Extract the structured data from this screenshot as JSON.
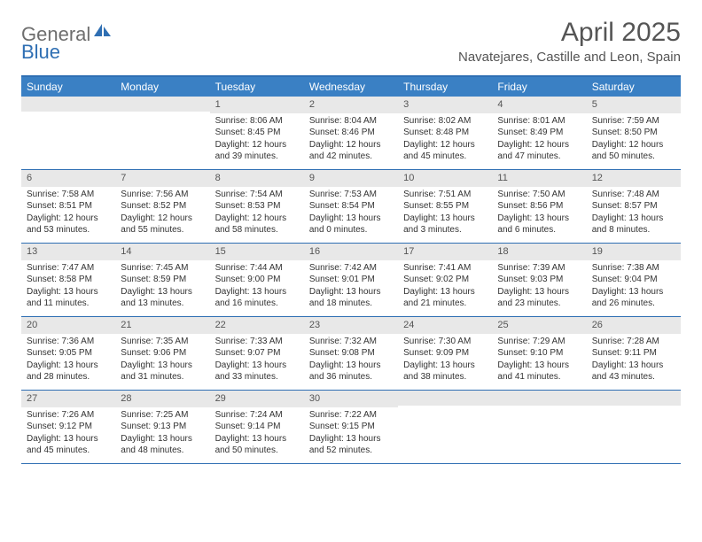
{
  "logo": {
    "text1": "General",
    "text2": "Blue"
  },
  "title": "April 2025",
  "location": "Navatejares, Castille and Leon, Spain",
  "colors": {
    "header_bar": "#3a80c4",
    "border": "#2f6fb3",
    "daynum_bg": "#e8e8e8",
    "text_gray": "#555555",
    "logo_gray": "#6e6e6e",
    "logo_blue": "#2f6fb3"
  },
  "weekdays": [
    "Sunday",
    "Monday",
    "Tuesday",
    "Wednesday",
    "Thursday",
    "Friday",
    "Saturday"
  ],
  "weeks": [
    [
      {
        "num": "",
        "sunrise": "",
        "sunset": "",
        "daylight": ""
      },
      {
        "num": "",
        "sunrise": "",
        "sunset": "",
        "daylight": ""
      },
      {
        "num": "1",
        "sunrise": "Sunrise: 8:06 AM",
        "sunset": "Sunset: 8:45 PM",
        "daylight": "Daylight: 12 hours and 39 minutes."
      },
      {
        "num": "2",
        "sunrise": "Sunrise: 8:04 AM",
        "sunset": "Sunset: 8:46 PM",
        "daylight": "Daylight: 12 hours and 42 minutes."
      },
      {
        "num": "3",
        "sunrise": "Sunrise: 8:02 AM",
        "sunset": "Sunset: 8:48 PM",
        "daylight": "Daylight: 12 hours and 45 minutes."
      },
      {
        "num": "4",
        "sunrise": "Sunrise: 8:01 AM",
        "sunset": "Sunset: 8:49 PM",
        "daylight": "Daylight: 12 hours and 47 minutes."
      },
      {
        "num": "5",
        "sunrise": "Sunrise: 7:59 AM",
        "sunset": "Sunset: 8:50 PM",
        "daylight": "Daylight: 12 hours and 50 minutes."
      }
    ],
    [
      {
        "num": "6",
        "sunrise": "Sunrise: 7:58 AM",
        "sunset": "Sunset: 8:51 PM",
        "daylight": "Daylight: 12 hours and 53 minutes."
      },
      {
        "num": "7",
        "sunrise": "Sunrise: 7:56 AM",
        "sunset": "Sunset: 8:52 PM",
        "daylight": "Daylight: 12 hours and 55 minutes."
      },
      {
        "num": "8",
        "sunrise": "Sunrise: 7:54 AM",
        "sunset": "Sunset: 8:53 PM",
        "daylight": "Daylight: 12 hours and 58 minutes."
      },
      {
        "num": "9",
        "sunrise": "Sunrise: 7:53 AM",
        "sunset": "Sunset: 8:54 PM",
        "daylight": "Daylight: 13 hours and 0 minutes."
      },
      {
        "num": "10",
        "sunrise": "Sunrise: 7:51 AM",
        "sunset": "Sunset: 8:55 PM",
        "daylight": "Daylight: 13 hours and 3 minutes."
      },
      {
        "num": "11",
        "sunrise": "Sunrise: 7:50 AM",
        "sunset": "Sunset: 8:56 PM",
        "daylight": "Daylight: 13 hours and 6 minutes."
      },
      {
        "num": "12",
        "sunrise": "Sunrise: 7:48 AM",
        "sunset": "Sunset: 8:57 PM",
        "daylight": "Daylight: 13 hours and 8 minutes."
      }
    ],
    [
      {
        "num": "13",
        "sunrise": "Sunrise: 7:47 AM",
        "sunset": "Sunset: 8:58 PM",
        "daylight": "Daylight: 13 hours and 11 minutes."
      },
      {
        "num": "14",
        "sunrise": "Sunrise: 7:45 AM",
        "sunset": "Sunset: 8:59 PM",
        "daylight": "Daylight: 13 hours and 13 minutes."
      },
      {
        "num": "15",
        "sunrise": "Sunrise: 7:44 AM",
        "sunset": "Sunset: 9:00 PM",
        "daylight": "Daylight: 13 hours and 16 minutes."
      },
      {
        "num": "16",
        "sunrise": "Sunrise: 7:42 AM",
        "sunset": "Sunset: 9:01 PM",
        "daylight": "Daylight: 13 hours and 18 minutes."
      },
      {
        "num": "17",
        "sunrise": "Sunrise: 7:41 AM",
        "sunset": "Sunset: 9:02 PM",
        "daylight": "Daylight: 13 hours and 21 minutes."
      },
      {
        "num": "18",
        "sunrise": "Sunrise: 7:39 AM",
        "sunset": "Sunset: 9:03 PM",
        "daylight": "Daylight: 13 hours and 23 minutes."
      },
      {
        "num": "19",
        "sunrise": "Sunrise: 7:38 AM",
        "sunset": "Sunset: 9:04 PM",
        "daylight": "Daylight: 13 hours and 26 minutes."
      }
    ],
    [
      {
        "num": "20",
        "sunrise": "Sunrise: 7:36 AM",
        "sunset": "Sunset: 9:05 PM",
        "daylight": "Daylight: 13 hours and 28 minutes."
      },
      {
        "num": "21",
        "sunrise": "Sunrise: 7:35 AM",
        "sunset": "Sunset: 9:06 PM",
        "daylight": "Daylight: 13 hours and 31 minutes."
      },
      {
        "num": "22",
        "sunrise": "Sunrise: 7:33 AM",
        "sunset": "Sunset: 9:07 PM",
        "daylight": "Daylight: 13 hours and 33 minutes."
      },
      {
        "num": "23",
        "sunrise": "Sunrise: 7:32 AM",
        "sunset": "Sunset: 9:08 PM",
        "daylight": "Daylight: 13 hours and 36 minutes."
      },
      {
        "num": "24",
        "sunrise": "Sunrise: 7:30 AM",
        "sunset": "Sunset: 9:09 PM",
        "daylight": "Daylight: 13 hours and 38 minutes."
      },
      {
        "num": "25",
        "sunrise": "Sunrise: 7:29 AM",
        "sunset": "Sunset: 9:10 PM",
        "daylight": "Daylight: 13 hours and 41 minutes."
      },
      {
        "num": "26",
        "sunrise": "Sunrise: 7:28 AM",
        "sunset": "Sunset: 9:11 PM",
        "daylight": "Daylight: 13 hours and 43 minutes."
      }
    ],
    [
      {
        "num": "27",
        "sunrise": "Sunrise: 7:26 AM",
        "sunset": "Sunset: 9:12 PM",
        "daylight": "Daylight: 13 hours and 45 minutes."
      },
      {
        "num": "28",
        "sunrise": "Sunrise: 7:25 AM",
        "sunset": "Sunset: 9:13 PM",
        "daylight": "Daylight: 13 hours and 48 minutes."
      },
      {
        "num": "29",
        "sunrise": "Sunrise: 7:24 AM",
        "sunset": "Sunset: 9:14 PM",
        "daylight": "Daylight: 13 hours and 50 minutes."
      },
      {
        "num": "30",
        "sunrise": "Sunrise: 7:22 AM",
        "sunset": "Sunset: 9:15 PM",
        "daylight": "Daylight: 13 hours and 52 minutes."
      },
      {
        "num": "",
        "sunrise": "",
        "sunset": "",
        "daylight": ""
      },
      {
        "num": "",
        "sunrise": "",
        "sunset": "",
        "daylight": ""
      },
      {
        "num": "",
        "sunrise": "",
        "sunset": "",
        "daylight": ""
      }
    ]
  ]
}
